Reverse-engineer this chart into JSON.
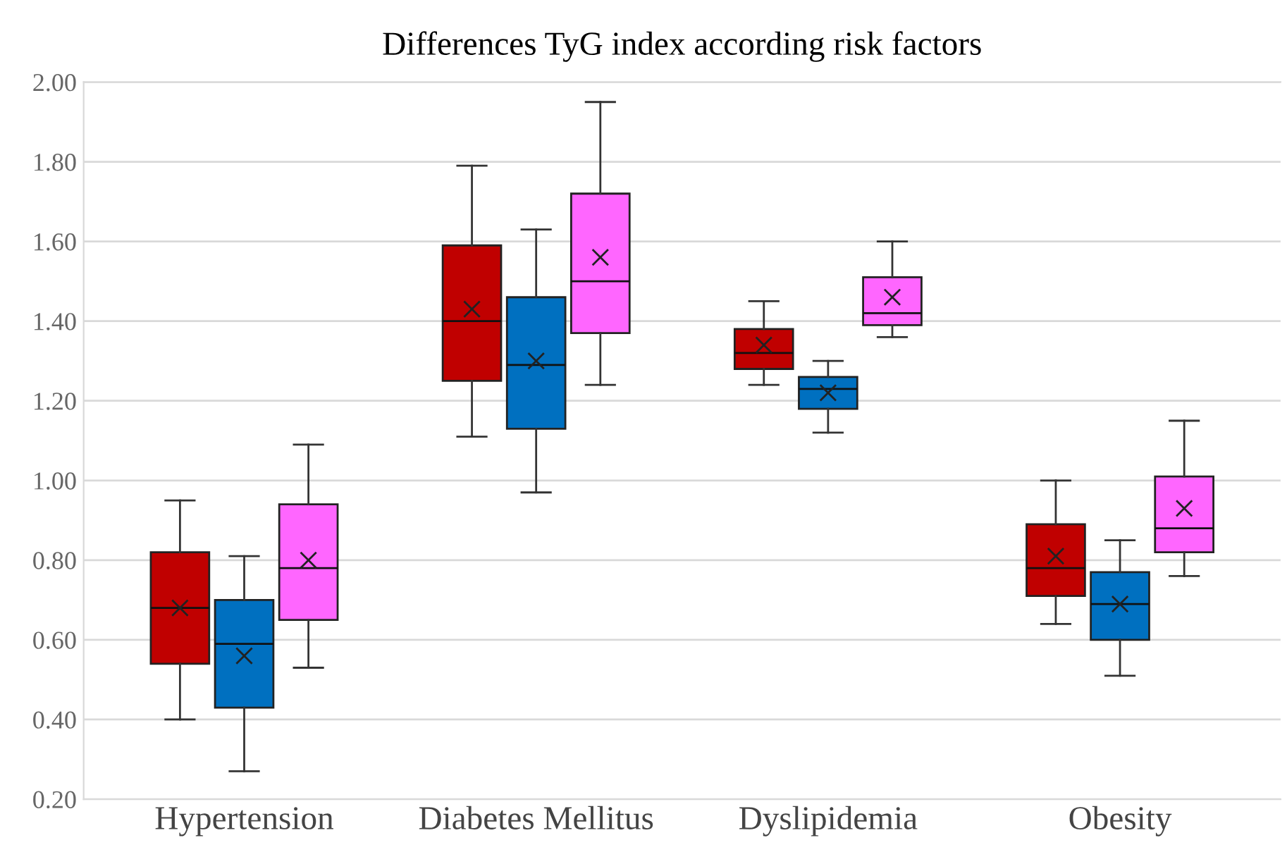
{
  "chart_data": {
    "type": "box",
    "title": "Differences TyG index according risk factors",
    "categories": [
      "Hypertension",
      "Diabetes Mellitus",
      "Dyslipidemia",
      "Obesity"
    ],
    "series": [
      {
        "color": "#c00000",
        "boxes": [
          {
            "low": 0.4,
            "q1": 0.54,
            "median": 0.68,
            "q3": 0.82,
            "high": 0.95,
            "mean": 0.68
          },
          {
            "low": 1.11,
            "q1": 1.25,
            "median": 1.4,
            "q3": 1.59,
            "high": 1.79,
            "mean": 1.43
          },
          {
            "low": 1.24,
            "q1": 1.28,
            "median": 1.32,
            "q3": 1.38,
            "high": 1.45,
            "mean": 1.34
          },
          {
            "low": 0.64,
            "q1": 0.71,
            "median": 0.78,
            "q3": 0.89,
            "high": 1.0,
            "mean": 0.81
          }
        ]
      },
      {
        "color": "#0070c0",
        "boxes": [
          {
            "low": 0.27,
            "q1": 0.43,
            "median": 0.59,
            "q3": 0.7,
            "high": 0.81,
            "mean": 0.56
          },
          {
            "low": 0.97,
            "q1": 1.13,
            "median": 1.29,
            "q3": 1.46,
            "high": 1.63,
            "mean": 1.3
          },
          {
            "low": 1.12,
            "q1": 1.18,
            "median": 1.23,
            "q3": 1.26,
            "high": 1.3,
            "mean": 1.22
          },
          {
            "low": 0.51,
            "q1": 0.6,
            "median": 0.69,
            "q3": 0.77,
            "high": 0.85,
            "mean": 0.69
          }
        ]
      },
      {
        "color": "#ff66ff",
        "boxes": [
          {
            "low": 0.53,
            "q1": 0.65,
            "median": 0.78,
            "q3": 0.94,
            "high": 1.09,
            "mean": 0.8
          },
          {
            "low": 1.24,
            "q1": 1.37,
            "median": 1.5,
            "q3": 1.72,
            "high": 1.95,
            "mean": 1.56
          },
          {
            "low": 1.36,
            "q1": 1.39,
            "median": 1.42,
            "q3": 1.51,
            "high": 1.6,
            "mean": 1.46
          },
          {
            "low": 0.76,
            "q1": 0.82,
            "median": 0.88,
            "q3": 1.01,
            "high": 1.15,
            "mean": 0.93
          }
        ]
      }
    ],
    "ylim": [
      0.2,
      2.0
    ],
    "yticks": [
      {
        "value": 0.2,
        "label": "0.20"
      },
      {
        "value": 0.4,
        "label": "0.40"
      },
      {
        "value": 0.6,
        "label": "0.60"
      },
      {
        "value": 0.8,
        "label": "0.80"
      },
      {
        "value": 1.0,
        "label": "1.00"
      },
      {
        "value": 1.2,
        "label": "1.20"
      },
      {
        "value": 1.4,
        "label": "1.40"
      },
      {
        "value": 1.6,
        "label": "1.60"
      },
      {
        "value": 1.8,
        "label": "1.80"
      },
      {
        "value": 2.0,
        "label": "2.00"
      }
    ],
    "grid": "y",
    "legend": false
  }
}
